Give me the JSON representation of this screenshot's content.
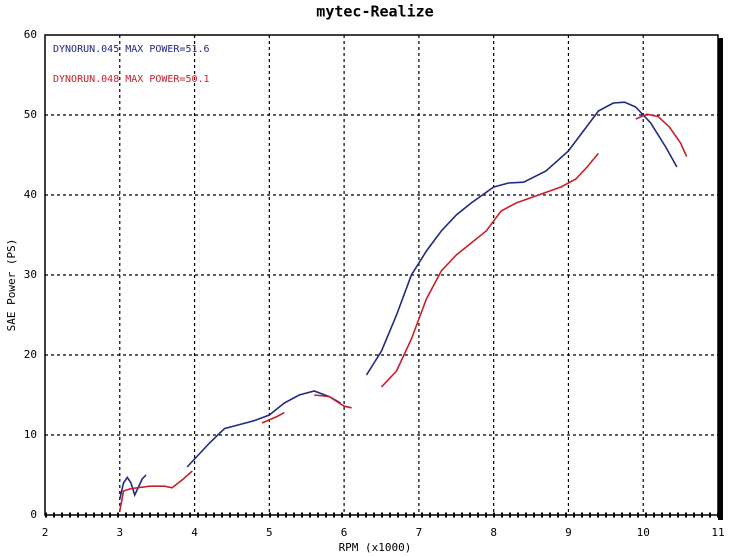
{
  "chart_data": {
    "type": "line",
    "title": "mytec-Realize",
    "x_label": "RPM (x1000)",
    "y_label": "SAE Power (PS)",
    "xlim": [
      2,
      11
    ],
    "xticks": [
      2,
      3,
      4,
      5,
      6,
      7,
      8,
      9,
      10,
      11
    ],
    "ylim": [
      0,
      60
    ],
    "yticks": [
      0,
      10,
      20,
      30,
      40,
      50,
      60
    ],
    "grid": true,
    "series": [
      {
        "name": "DYNORUN.045  MAX POWER=51.6",
        "color": "#1f2a80",
        "x": [
          3.0,
          3.05,
          3.1,
          3.15,
          3.2,
          3.25,
          3.3,
          3.35,
          3.85,
          3.9,
          4.0,
          4.2,
          4.4,
          4.6,
          4.8,
          5.0,
          5.2,
          5.4,
          5.6,
          5.8,
          5.95,
          6.1,
          6.3,
          6.5,
          6.7,
          6.9,
          7.1,
          7.3,
          7.5,
          7.7,
          8.0,
          8.2,
          8.4,
          8.7,
          9.0,
          9.2,
          9.4,
          9.6,
          9.75,
          9.9,
          10.1,
          10.3,
          10.45
        ],
        "values": [
          2,
          4,
          4.7,
          4,
          2.5,
          3.5,
          4.5,
          5,
          null,
          6,
          7,
          9,
          10.8,
          11.3,
          11.8,
          12.5,
          14,
          15,
          15.5,
          14.8,
          14,
          null,
          17.5,
          20.5,
          25,
          30,
          33,
          35.5,
          37.5,
          39,
          41,
          41.5,
          41.6,
          43,
          45.5,
          48,
          50.5,
          51.5,
          51.6,
          51,
          49,
          46,
          43.5
        ]
      },
      {
        "name": "DYNORUN.048  MAX POWER=50.1",
        "color": "#c8202a",
        "x": [
          3.0,
          3.05,
          3.15,
          3.4,
          3.6,
          3.7,
          3.85,
          3.97,
          4.7,
          4.9,
          5.1,
          5.2,
          5.45,
          5.6,
          5.8,
          6.0,
          6.1,
          6.3,
          6.5,
          6.7,
          6.9,
          7.1,
          7.3,
          7.5,
          7.7,
          7.9,
          8.1,
          8.3,
          8.6,
          8.9,
          9.1,
          9.25,
          9.4,
          9.7,
          9.9,
          10.05,
          10.2,
          10.35,
          10.5,
          10.58
        ],
        "values": [
          0.5,
          3,
          3.3,
          3.6,
          3.6,
          3.4,
          4.5,
          5.5,
          null,
          11.5,
          12.3,
          12.8,
          null,
          15,
          14.8,
          13.6,
          13.4,
          null,
          16,
          18,
          22,
          27,
          30.5,
          32.5,
          34,
          35.5,
          38,
          39,
          40,
          41,
          42,
          43.5,
          45.2,
          null,
          49.5,
          50.1,
          49.8,
          48.5,
          46.5,
          44.8
        ]
      }
    ]
  }
}
